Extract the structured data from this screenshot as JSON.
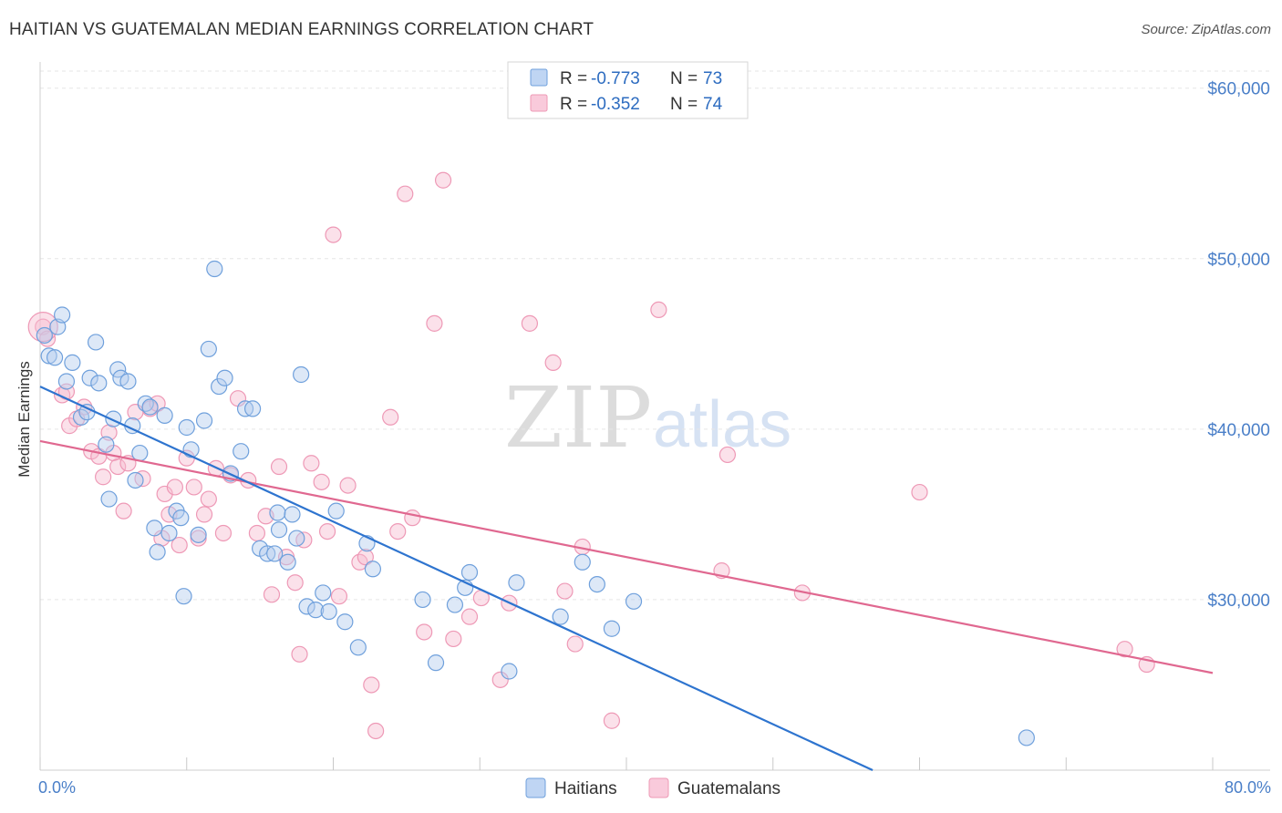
{
  "title": "HAITIAN VS GUATEMALAN MEDIAN EARNINGS CORRELATION CHART",
  "source": "Source: ZipAtlas.com",
  "watermark": {
    "part1": "ZIP",
    "part2": "atlas"
  },
  "colors": {
    "haitians": "#6fa0dc",
    "haitians_line": "#2e74cf",
    "guatemalans": "#ee99b6",
    "guatemalans_line": "#e06890"
  },
  "stats": [
    {
      "r_label": "R = ",
      "r_value": "-0.773",
      "n_label": "N = ",
      "n_value": "73"
    },
    {
      "r_label": "R = ",
      "r_value": "-0.352",
      "n_label": "N = ",
      "n_value": "74"
    }
  ],
  "chart_data": {
    "type": "scatter",
    "xlabel": "",
    "ylabel": "Median Earnings",
    "xlim": [
      0,
      80
    ],
    "ylim": [
      20000,
      61000
    ],
    "x_tick_labels": [
      "0.0%",
      "80.0%"
    ],
    "y_ticks": [
      30000,
      40000,
      50000,
      60000
    ],
    "y_tick_labels": [
      "$30,000",
      "$40,000",
      "$50,000",
      "$60,000"
    ],
    "grid": true,
    "legend": "bottom-center",
    "series": [
      {
        "name": "Haitians",
        "trend": {
          "x": [
            0,
            56.8
          ],
          "y": [
            42500,
            20000
          ]
        },
        "points": [
          [
            0.3,
            45500
          ],
          [
            0.6,
            44300
          ],
          [
            1.2,
            46000
          ],
          [
            1.5,
            46700
          ],
          [
            1.8,
            42800
          ],
          [
            2.2,
            43900
          ],
          [
            2.8,
            40700
          ],
          [
            3.2,
            41000
          ],
          [
            3.4,
            43000
          ],
          [
            3.8,
            45100
          ],
          [
            4.0,
            42700
          ],
          [
            4.5,
            39100
          ],
          [
            4.7,
            35900
          ],
          [
            5.0,
            40600
          ],
          [
            5.3,
            43500
          ],
          [
            5.5,
            43000
          ],
          [
            6.0,
            42800
          ],
          [
            6.3,
            40200
          ],
          [
            6.5,
            37000
          ],
          [
            6.8,
            38600
          ],
          [
            7.2,
            41500
          ],
          [
            7.5,
            41300
          ],
          [
            7.8,
            34200
          ],
          [
            8.0,
            32800
          ],
          [
            8.5,
            40800
          ],
          [
            8.8,
            33900
          ],
          [
            9.3,
            35200
          ],
          [
            9.6,
            34800
          ],
          [
            9.8,
            30200
          ],
          [
            10.0,
            40100
          ],
          [
            10.3,
            38800
          ],
          [
            10.8,
            33800
          ],
          [
            11.2,
            40500
          ],
          [
            11.5,
            44700
          ],
          [
            11.9,
            49400
          ],
          [
            12.2,
            42500
          ],
          [
            12.6,
            43000
          ],
          [
            13.0,
            37400
          ],
          [
            13.7,
            38700
          ],
          [
            14.0,
            41200
          ],
          [
            14.5,
            41200
          ],
          [
            15.0,
            33000
          ],
          [
            15.5,
            32700
          ],
          [
            16.0,
            32700
          ],
          [
            16.2,
            35100
          ],
          [
            16.3,
            34100
          ],
          [
            16.9,
            32200
          ],
          [
            17.2,
            35000
          ],
          [
            17.5,
            33600
          ],
          [
            17.8,
            43200
          ],
          [
            18.2,
            29600
          ],
          [
            18.8,
            29400
          ],
          [
            19.3,
            30400
          ],
          [
            19.7,
            29300
          ],
          [
            20.2,
            35200
          ],
          [
            20.8,
            28700
          ],
          [
            21.7,
            27200
          ],
          [
            22.3,
            33300
          ],
          [
            22.7,
            31800
          ],
          [
            26.1,
            30000
          ],
          [
            27.0,
            26300
          ],
          [
            28.3,
            29700
          ],
          [
            29.0,
            30700
          ],
          [
            29.3,
            31600
          ],
          [
            32.0,
            25800
          ],
          [
            32.5,
            31000
          ],
          [
            35.5,
            29000
          ],
          [
            37.0,
            32200
          ],
          [
            38.0,
            30900
          ],
          [
            39.0,
            28300
          ],
          [
            40.5,
            29900
          ],
          [
            67.3,
            21900
          ],
          [
            1.0,
            44200
          ]
        ]
      },
      {
        "name": "Guatemalans",
        "trend": {
          "x": [
            0,
            80
          ],
          "y": [
            39300,
            25700
          ]
        },
        "points": [
          [
            0.2,
            46000
          ],
          [
            0.5,
            45300
          ],
          [
            1.5,
            42000
          ],
          [
            1.8,
            42200
          ],
          [
            2.0,
            40200
          ],
          [
            2.5,
            40600
          ],
          [
            3.0,
            41300
          ],
          [
            3.5,
            38700
          ],
          [
            4.0,
            38400
          ],
          [
            4.3,
            37200
          ],
          [
            4.7,
            39800
          ],
          [
            5.0,
            38600
          ],
          [
            5.3,
            37800
          ],
          [
            5.7,
            35200
          ],
          [
            6.0,
            38000
          ],
          [
            6.5,
            41000
          ],
          [
            7.0,
            37100
          ],
          [
            7.5,
            41200
          ],
          [
            8.0,
            41500
          ],
          [
            8.3,
            33600
          ],
          [
            8.5,
            36200
          ],
          [
            8.8,
            35000
          ],
          [
            9.2,
            36600
          ],
          [
            9.5,
            33200
          ],
          [
            10.0,
            38300
          ],
          [
            10.5,
            36600
          ],
          [
            10.8,
            33600
          ],
          [
            11.2,
            35000
          ],
          [
            11.5,
            35900
          ],
          [
            12.0,
            37700
          ],
          [
            12.5,
            33900
          ],
          [
            13.0,
            37300
          ],
          [
            13.5,
            41800
          ],
          [
            14.2,
            37000
          ],
          [
            14.8,
            33900
          ],
          [
            15.4,
            34900
          ],
          [
            15.8,
            30300
          ],
          [
            16.3,
            37800
          ],
          [
            16.8,
            32500
          ],
          [
            17.4,
            31000
          ],
          [
            17.7,
            26800
          ],
          [
            18.0,
            33500
          ],
          [
            18.5,
            38000
          ],
          [
            19.2,
            36900
          ],
          [
            19.6,
            34000
          ],
          [
            20.0,
            51400
          ],
          [
            20.4,
            30200
          ],
          [
            21.0,
            36700
          ],
          [
            21.8,
            32200
          ],
          [
            22.2,
            32500
          ],
          [
            22.6,
            25000
          ],
          [
            22.9,
            22300
          ],
          [
            23.9,
            40700
          ],
          [
            24.4,
            34000
          ],
          [
            24.9,
            53800
          ],
          [
            25.4,
            34800
          ],
          [
            26.2,
            28100
          ],
          [
            26.9,
            46200
          ],
          [
            27.5,
            54600
          ],
          [
            28.2,
            27700
          ],
          [
            29.3,
            29000
          ],
          [
            30.1,
            30100
          ],
          [
            31.4,
            25300
          ],
          [
            32.0,
            29800
          ],
          [
            33.4,
            46200
          ],
          [
            35.0,
            43900
          ],
          [
            35.8,
            30500
          ],
          [
            36.5,
            27400
          ],
          [
            37.0,
            33100
          ],
          [
            39.0,
            22900
          ],
          [
            42.2,
            47000
          ],
          [
            46.5,
            31700
          ],
          [
            52.0,
            30400
          ],
          [
            60.0,
            36300
          ]
        ]
      }
    ],
    "extra_points_guatemalans": [
      [
        46.9,
        38500
      ],
      [
        74.0,
        27100
      ],
      [
        75.5,
        26200
      ]
    ]
  },
  "legend": {
    "items": [
      "Haitians",
      "Guatemalans"
    ]
  }
}
